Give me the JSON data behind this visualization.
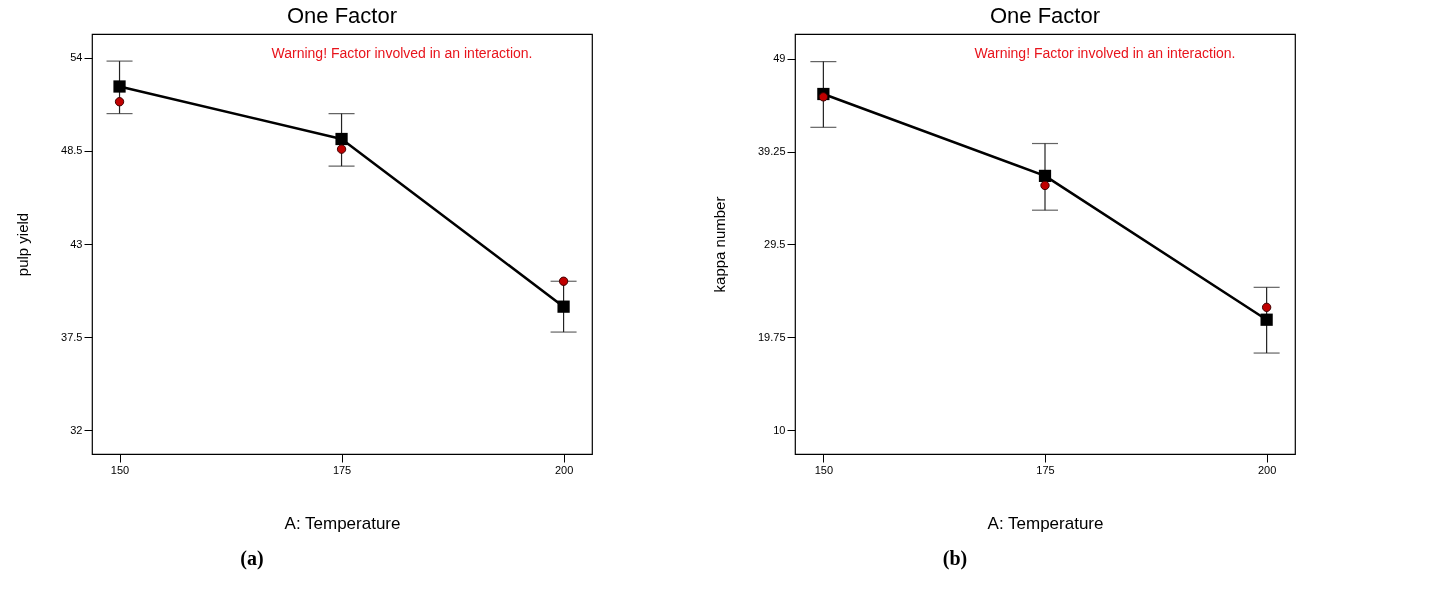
{
  "chart_data": [
    {
      "type": "line",
      "title": "One Factor",
      "xlabel": "A: Temperature",
      "ylabel": "pulp yield",
      "annotations": [
        "Warning! Factor involved in an interaction.",
        "(a)"
      ],
      "x": [
        150,
        175,
        200
      ],
      "xlim": [
        146.9,
        203.2
      ],
      "xticks": [
        150,
        175,
        200
      ],
      "ylim": [
        30.6,
        55.4
      ],
      "yticks": [
        32,
        37.5,
        43,
        48.5,
        54
      ],
      "grid": false,
      "series": [
        {
          "color": "#000000",
          "marker": "square",
          "values": [
            52.3,
            49.2,
            39.3
          ],
          "errors": [
            [
              50.7,
              53.8
            ],
            [
              47.6,
              50.7
            ],
            [
              37.8,
              40.8
            ]
          ]
        },
        {
          "type": "scatter",
          "color": "#c00000",
          "marker": "circle",
          "values": [
            51.4,
            48.6,
            40.8
          ]
        }
      ]
    },
    {
      "type": "line",
      "title": "One Factor",
      "xlabel": "A: Temperature",
      "ylabel": "kappa number",
      "annotations": [
        "Warning! Factor involved in an interaction.",
        "(b)"
      ],
      "x": [
        150,
        175,
        200
      ],
      "xlim": [
        146.8,
        203.2
      ],
      "xticks": [
        150,
        175,
        200
      ],
      "ylim": [
        7.5,
        51.6
      ],
      "yticks": [
        10,
        19.75,
        29.5,
        39.25,
        49
      ],
      "grid": false,
      "series": [
        {
          "color": "#000000",
          "marker": "square",
          "values": [
            45.3,
            36.7,
            21.6
          ],
          "errors": [
            [
              41.8,
              48.7
            ],
            [
              33.1,
              40.1
            ],
            [
              18.1,
              25.0
            ]
          ]
        },
        {
          "type": "scatter",
          "color": "#c00000",
          "marker": "circle",
          "values": [
            45.0,
            35.7,
            22.9
          ]
        }
      ]
    }
  ]
}
